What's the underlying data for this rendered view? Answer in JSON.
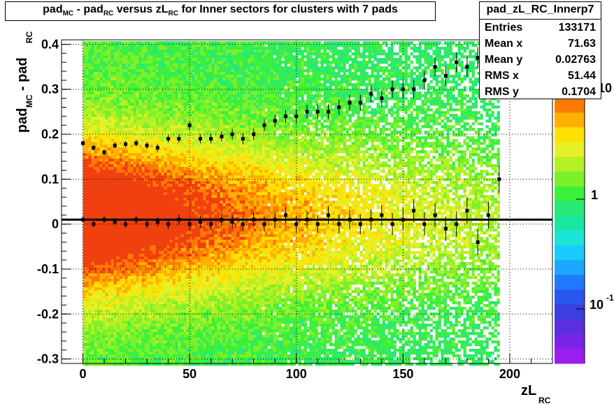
{
  "title": {
    "main": "pad",
    "sub1": "MC",
    "mid1": " - pad",
    "sub2": "RC",
    "mid2": " versus zL",
    "sub3": "RC",
    "tail": " for Inner sectors for clusters with 7 pads"
  },
  "stats": {
    "name": "pad_zL_RC_Innerp7",
    "rows": [
      {
        "label": "Entries",
        "value": "133171"
      },
      {
        "label": "Mean x",
        "value": "71.63"
      },
      {
        "label": "Mean y",
        "value": "0.02763"
      },
      {
        "label": "RMS x",
        "value": "51.44"
      },
      {
        "label": "RMS y",
        "value": "0.1704"
      }
    ]
  },
  "axes": {
    "xlabel_main": "zL",
    "xlabel_sub": "RC",
    "ylabel_main": "pad",
    "ylabel_sub1": "MC",
    "ylabel_mid": " - pad",
    "ylabel_sub2": "RC"
  },
  "colorbar": {
    "labels": [
      "1",
      "10",
      "10"
    ],
    "exp": "-1"
  },
  "chart_data": {
    "type": "heatmap",
    "xlim": [
      -10,
      220
    ],
    "ylim": [
      -0.31,
      0.41
    ],
    "xticks": [
      0,
      50,
      100,
      150,
      200
    ],
    "yticks": [
      -0.3,
      -0.2,
      -0.1,
      0,
      0.1,
      0.2,
      0.3,
      0.4
    ],
    "xtick_labels": [
      "0",
      "50",
      "100",
      "150",
      "200"
    ],
    "ytick_labels": [
      "-0.3",
      "-0.2",
      "-0.1",
      "0",
      "0.1",
      "0.2",
      "0.3",
      "0.4"
    ],
    "grid": true,
    "fit_line_y": 0.01,
    "upper_profile": [
      [
        0,
        0.18
      ],
      [
        5,
        0.17
      ],
      [
        10,
        0.16
      ],
      [
        15,
        0.175
      ],
      [
        20,
        0.178
      ],
      [
        25,
        0.18
      ],
      [
        30,
        0.175
      ],
      [
        35,
        0.17
      ],
      [
        40,
        0.19
      ],
      [
        45,
        0.19
      ],
      [
        50,
        0.22
      ],
      [
        55,
        0.19
      ],
      [
        60,
        0.19
      ],
      [
        65,
        0.195
      ],
      [
        70,
        0.2
      ],
      [
        75,
        0.19
      ],
      [
        80,
        0.2
      ],
      [
        85,
        0.22
      ],
      [
        90,
        0.23
      ],
      [
        95,
        0.24
      ],
      [
        100,
        0.24
      ],
      [
        105,
        0.25
      ],
      [
        110,
        0.25
      ],
      [
        115,
        0.25
      ],
      [
        120,
        0.26
      ],
      [
        125,
        0.27
      ],
      [
        130,
        0.27
      ],
      [
        135,
        0.29
      ],
      [
        140,
        0.28
      ],
      [
        145,
        0.3
      ],
      [
        150,
        0.3
      ],
      [
        155,
        0.3
      ],
      [
        160,
        0.32
      ],
      [
        165,
        0.35
      ],
      [
        170,
        0.33
      ],
      [
        175,
        0.36
      ],
      [
        180,
        0.35
      ],
      [
        185,
        0.37
      ],
      [
        190,
        0.38
      ]
    ],
    "center_profile": [
      [
        0,
        0.01
      ],
      [
        5,
        0.0
      ],
      [
        10,
        0.01
      ],
      [
        15,
        0.005
      ],
      [
        20,
        0.0
      ],
      [
        25,
        0.01
      ],
      [
        30,
        0.0
      ],
      [
        35,
        0.005
      ],
      [
        40,
        0.0
      ],
      [
        45,
        0.01
      ],
      [
        50,
        0.0
      ],
      [
        55,
        0.005
      ],
      [
        60,
        0.0
      ],
      [
        65,
        0.01
      ],
      [
        70,
        0.005
      ],
      [
        75,
        0.0
      ],
      [
        80,
        0.01
      ],
      [
        85,
        0.0
      ],
      [
        90,
        0.01
      ],
      [
        95,
        0.02
      ],
      [
        100,
        0.0
      ],
      [
        105,
        0.01
      ],
      [
        110,
        0.0
      ],
      [
        115,
        0.02
      ],
      [
        120,
        0.0
      ],
      [
        125,
        0.01
      ],
      [
        130,
        0.0
      ],
      [
        135,
        0.01
      ],
      [
        140,
        0.02
      ],
      [
        145,
        0.0
      ],
      [
        150,
        0.01
      ],
      [
        155,
        0.03
      ],
      [
        160,
        0.0
      ],
      [
        165,
        0.02
      ],
      [
        170,
        -0.01
      ],
      [
        175,
        0.0
      ],
      [
        180,
        0.03
      ],
      [
        185,
        -0.04
      ],
      [
        190,
        0.02
      ],
      [
        195,
        0.1
      ]
    ]
  }
}
